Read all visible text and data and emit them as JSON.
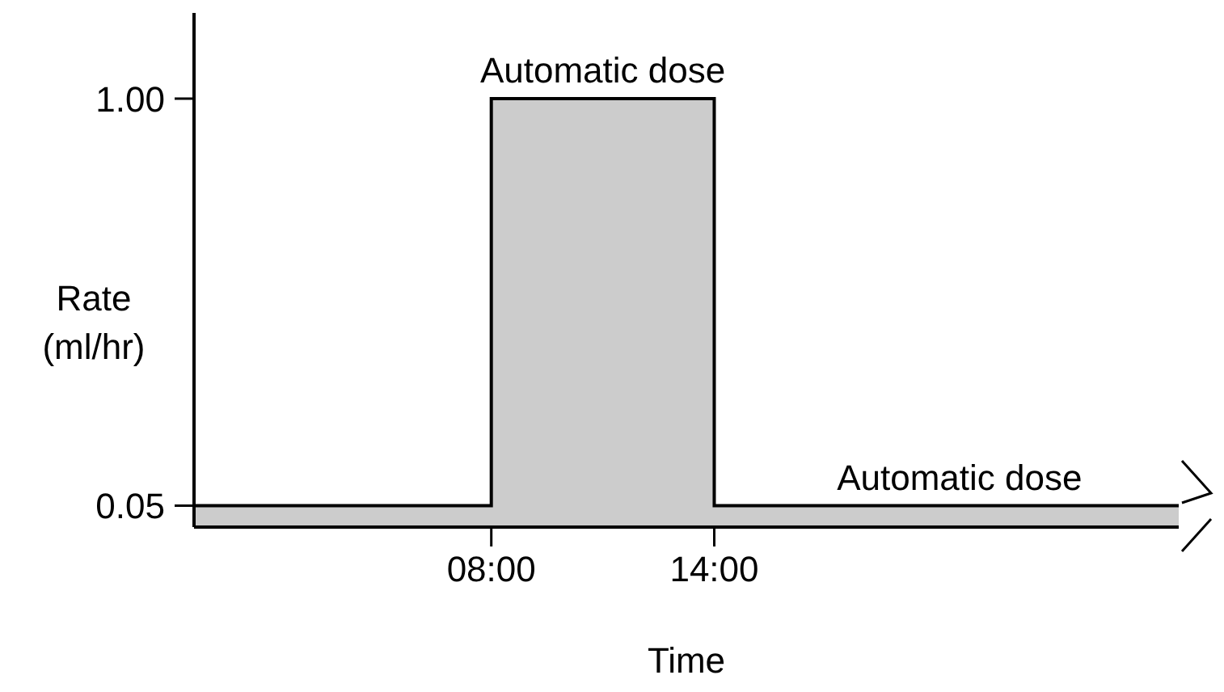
{
  "chart_data": {
    "type": "area",
    "xlabel": "Time",
    "ylabel": "Rate (ml/hr)",
    "x": [
      0,
      8,
      14,
      26.5
    ],
    "series": [
      {
        "color": "#cccccc",
        "values": [
          0.05,
          1,
          0.05,
          0.05
        ]
      },
      {
        "type": "step",
        "color": "#000000",
        "values": [
          0.05,
          1,
          0.05,
          0.05
        ]
      }
    ],
    "xlim": [
      0,
      26.5
    ],
    "xticks": [
      {
        "value": 8,
        "label": "08:00"
      },
      {
        "value": 14,
        "label": "14:00"
      }
    ],
    "ylim": [
      0,
      1.2
    ],
    "yticks": [
      {
        "value": 0.05,
        "label": "0.05"
      },
      {
        "value": 1,
        "label": "1.00"
      }
    ],
    "annotations": [
      {
        "text": "Automatic dose",
        "x": 11,
        "y": 1
      },
      {
        "text": "Automatic dose",
        "x": 20.6,
        "y": 0.05
      }
    ],
    "grid": false
  }
}
